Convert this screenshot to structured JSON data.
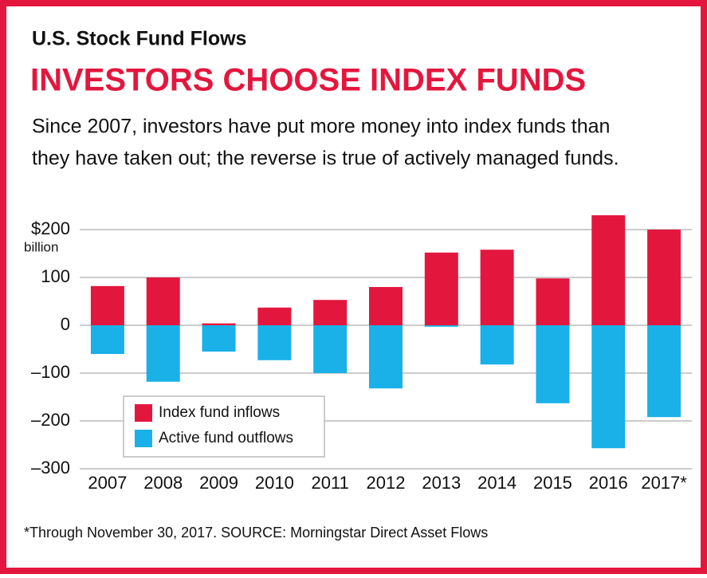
{
  "chart_data": {
    "type": "bar",
    "kicker": "U.S. Stock Fund Flows",
    "title": "INVESTORS CHOOSE INDEX FUNDS",
    "subtitle": [
      "Since 2007, investors have put more money into index funds than",
      "they have taken out; the reverse is  true of actively managed funds."
    ],
    "y_unit": "billion",
    "categories": [
      "2007",
      "2008",
      "2009",
      "2010",
      "2011",
      "2012",
      "2013",
      "2014",
      "2015",
      "2016",
      "2017*"
    ],
    "series": [
      {
        "name": "Index fund inflows",
        "color": "#e3173e",
        "values": [
          82,
          100,
          4,
          37,
          53,
          80,
          152,
          158,
          98,
          230,
          200
        ]
      },
      {
        "name": "Active fund outflows",
        "color": "#1ab0e8",
        "values": [
          -60,
          -118,
          -55,
          -73,
          -100,
          -132,
          -3,
          -82,
          -163,
          -257,
          -192
        ]
      }
    ],
    "ylim": [
      -300,
      230
    ],
    "yticks": [
      {
        "value": -300,
        "label": "–300"
      },
      {
        "value": -200,
        "label": "–200"
      },
      {
        "value": -100,
        "label": "–100"
      },
      0,
      100,
      {
        "value": 200,
        "label": "$200"
      }
    ],
    "grid": true,
    "legend": "lower-left",
    "footnote": "*Through November 30, 2017.  SOURCE: Morningstar Direct Asset Flows"
  }
}
